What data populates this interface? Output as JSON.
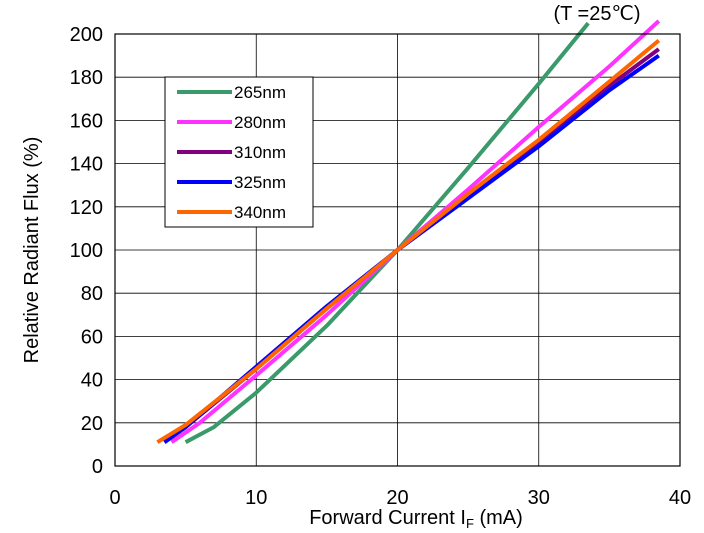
{
  "chart_data": {
    "type": "line",
    "annotation": "(T =25℃)",
    "xlabel": "Forward Current I",
    "xlabel_sub": "F",
    "xlabel_unit": " (mA)",
    "ylabel": "Relative Radiant Flux (%)",
    "xlim": [
      0,
      40
    ],
    "ylim": [
      0,
      200
    ],
    "xticks": [
      0,
      10,
      20,
      30,
      40
    ],
    "yticks": [
      0,
      20,
      40,
      60,
      80,
      100,
      120,
      140,
      160,
      180,
      200
    ],
    "grid": true,
    "legend_position": "upper-left",
    "series": [
      {
        "name": "265nm",
        "color": "#3a9a6a",
        "x": [
          5,
          7,
          10,
          15,
          20,
          25,
          30,
          33.5
        ],
        "y": [
          11,
          18,
          34,
          65,
          100,
          138,
          177,
          205
        ]
      },
      {
        "name": "280nm",
        "color": "#ff33ff",
        "x": [
          4,
          6,
          10,
          15,
          20,
          25,
          30,
          35,
          38.5
        ],
        "y": [
          11,
          20,
          42,
          70,
          100,
          128,
          157,
          185,
          206
        ]
      },
      {
        "name": "310nm",
        "color": "#800080",
        "x": [
          3.5,
          5,
          10,
          15,
          20,
          25,
          30,
          35,
          38.5
        ],
        "y": [
          11,
          18,
          45,
          73,
          100,
          125,
          150,
          176,
          193
        ]
      },
      {
        "name": "325nm",
        "color": "#0000ff",
        "x": [
          3.5,
          5,
          10,
          15,
          20,
          25,
          30,
          35,
          38.5
        ],
        "y": [
          11,
          18,
          46,
          74,
          100,
          124,
          148,
          174,
          190
        ]
      },
      {
        "name": "340nm",
        "color": "#ff6600",
        "x": [
          3,
          5,
          10,
          15,
          20,
          25,
          30,
          35,
          38.5
        ],
        "y": [
          11,
          19,
          45,
          73,
          100,
          126,
          151,
          178,
          197
        ]
      }
    ]
  }
}
